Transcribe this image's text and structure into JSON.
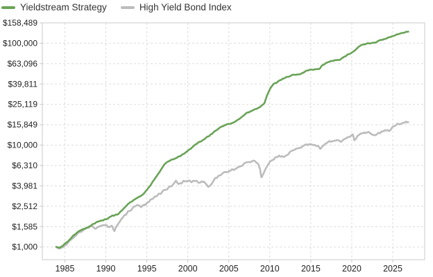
{
  "legend": {
    "items": [
      {
        "label": "Yieldstream Strategy",
        "color": "#69a356"
      },
      {
        "label": "High Yield Bond Index",
        "color": "#bcbcbc"
      }
    ]
  },
  "colors": {
    "grid": "#dcdcdc",
    "plot_border": "#c9c9c9",
    "tick_text": "#222222",
    "legend_text": "#333333",
    "background": "#ffffff"
  },
  "chart_data": {
    "type": "line",
    "title": "",
    "xlabel": "",
    "ylabel": "",
    "x_axis": {
      "min": 1982.3,
      "max": 2028.9,
      "tick_years": [
        1985,
        1990,
        1995,
        2000,
        2005,
        2010,
        2015,
        2020,
        2025
      ],
      "tick_labels": [
        "1985",
        "1990",
        "1995",
        "2000",
        "2005",
        "2010",
        "2015",
        "2020",
        "2025"
      ]
    },
    "y_axis": {
      "scale": "log",
      "min": 760,
      "max": 158489,
      "grid": "dashed",
      "tick_values": [
        158489,
        100000,
        63096,
        39811,
        25119,
        15849,
        10000,
        6310,
        3981,
        2512,
        1585,
        1000
      ],
      "tick_labels": [
        "$158,489",
        "$100,000",
        "$63,096",
        "$39,811",
        "$25,119",
        "$15,849",
        "$10,000",
        "$6,310",
        "$3,981",
        "$2,512",
        "$1,585",
        "$1,000"
      ]
    },
    "legend_position": "top-left",
    "series": [
      {
        "name": "Yieldstream Strategy",
        "color": "#69a356",
        "texture": 0.006,
        "points": [
          [
            1983.95,
            1005
          ],
          [
            1984.3,
            975
          ],
          [
            1984.7,
            1010
          ],
          [
            1985.0,
            1080
          ],
          [
            1985.5,
            1160
          ],
          [
            1986.0,
            1290
          ],
          [
            1986.6,
            1420
          ],
          [
            1987.2,
            1500
          ],
          [
            1987.7,
            1540
          ],
          [
            1988.3,
            1660
          ],
          [
            1989.0,
            1770
          ],
          [
            1989.6,
            1820
          ],
          [
            1990.2,
            1900
          ],
          [
            1990.8,
            2020
          ],
          [
            1991.5,
            2100
          ],
          [
            1992.0,
            2300
          ],
          [
            1992.7,
            2650
          ],
          [
            1993.4,
            2900
          ],
          [
            1994.0,
            3100
          ],
          [
            1994.6,
            3300
          ],
          [
            1995.2,
            3800
          ],
          [
            1995.9,
            4600
          ],
          [
            1996.5,
            5400
          ],
          [
            1997.2,
            6600
          ],
          [
            1997.8,
            7100
          ],
          [
            1998.4,
            7350
          ],
          [
            1999.0,
            7800
          ],
          [
            1999.6,
            8300
          ],
          [
            2000.2,
            9000
          ],
          [
            2000.9,
            10100
          ],
          [
            2001.5,
            10800
          ],
          [
            2002.1,
            11600
          ],
          [
            2002.8,
            12700
          ],
          [
            2003.4,
            13900
          ],
          [
            2004.0,
            15000
          ],
          [
            2004.7,
            15900
          ],
          [
            2005.3,
            16400
          ],
          [
            2005.9,
            17300
          ],
          [
            2006.6,
            18800
          ],
          [
            2007.2,
            20700
          ],
          [
            2007.9,
            21900
          ],
          [
            2008.5,
            23000
          ],
          [
            2009.0,
            24200
          ],
          [
            2009.35,
            26000
          ],
          [
            2009.7,
            31500
          ],
          [
            2010.1,
            36500
          ],
          [
            2010.5,
            39800
          ],
          [
            2011.0,
            42300
          ],
          [
            2011.8,
            45400
          ],
          [
            2012.6,
            48500
          ],
          [
            2013.1,
            49200
          ],
          [
            2013.7,
            49500
          ],
          [
            2014.5,
            53400
          ],
          [
            2015.2,
            55000
          ],
          [
            2015.7,
            55600
          ],
          [
            2016.1,
            56500
          ],
          [
            2016.35,
            60500
          ],
          [
            2016.8,
            63500
          ],
          [
            2017.4,
            66500
          ],
          [
            2018.0,
            68000
          ],
          [
            2018.6,
            69500
          ],
          [
            2019.2,
            74500
          ],
          [
            2019.8,
            79500
          ],
          [
            2020.2,
            82500
          ],
          [
            2020.5,
            86500
          ],
          [
            2020.9,
            93000
          ],
          [
            2021.3,
            97000
          ],
          [
            2021.8,
            99000
          ],
          [
            2022.3,
            100000
          ],
          [
            2022.8,
            101500
          ],
          [
            2023.3,
            105500
          ],
          [
            2023.9,
            109500
          ],
          [
            2024.5,
            113500
          ],
          [
            2025.0,
            117500
          ],
          [
            2025.6,
            122000
          ],
          [
            2026.1,
            126500
          ],
          [
            2026.6,
            129000
          ],
          [
            2026.9,
            130000
          ]
        ]
      },
      {
        "name": "High Yield Bond Index",
        "color": "#bcbcbc",
        "texture": 0.013,
        "points": [
          [
            1983.95,
            1000
          ],
          [
            1984.35,
            950
          ],
          [
            1984.8,
            1000
          ],
          [
            1985.3,
            1090
          ],
          [
            1986.0,
            1230
          ],
          [
            1986.7,
            1380
          ],
          [
            1987.3,
            1480
          ],
          [
            1987.8,
            1560
          ],
          [
            1988.2,
            1620
          ],
          [
            1988.7,
            1510
          ],
          [
            1989.2,
            1600
          ],
          [
            1989.7,
            1660
          ],
          [
            1990.1,
            1640
          ],
          [
            1990.5,
            1560
          ],
          [
            1990.75,
            1620
          ],
          [
            1991.05,
            1440
          ],
          [
            1991.5,
            1700
          ],
          [
            1992.0,
            1960
          ],
          [
            1992.6,
            2160
          ],
          [
            1993.2,
            2400
          ],
          [
            1993.8,
            2580
          ],
          [
            1994.3,
            2500
          ],
          [
            1994.9,
            2620
          ],
          [
            1995.5,
            2900
          ],
          [
            1996.1,
            3150
          ],
          [
            1996.8,
            3450
          ],
          [
            1997.5,
            3750
          ],
          [
            1998.1,
            4000
          ],
          [
            1998.55,
            4400
          ],
          [
            1998.9,
            4100
          ],
          [
            1999.4,
            4350
          ],
          [
            1999.9,
            4450
          ],
          [
            2000.4,
            4350
          ],
          [
            2000.9,
            4450
          ],
          [
            2001.3,
            4250
          ],
          [
            2001.7,
            4450
          ],
          [
            2002.1,
            4300
          ],
          [
            2002.45,
            3920
          ],
          [
            2002.9,
            4150
          ],
          [
            2003.4,
            4750
          ],
          [
            2004.0,
            5150
          ],
          [
            2004.6,
            5350
          ],
          [
            2005.1,
            5600
          ],
          [
            2005.8,
            5850
          ],
          [
            2006.5,
            6250
          ],
          [
            2007.2,
            6750
          ],
          [
            2007.8,
            6950
          ],
          [
            2008.2,
            7050
          ],
          [
            2008.55,
            6600
          ],
          [
            2008.8,
            5800
          ],
          [
            2008.98,
            4750
          ],
          [
            2009.2,
            5150
          ],
          [
            2009.6,
            6100
          ],
          [
            2010.0,
            6900
          ],
          [
            2010.5,
            7350
          ],
          [
            2011.1,
            7850
          ],
          [
            2011.65,
            7550
          ],
          [
            2012.1,
            8150
          ],
          [
            2012.8,
            8850
          ],
          [
            2013.5,
            9300
          ],
          [
            2014.2,
            9900
          ],
          [
            2014.9,
            10250
          ],
          [
            2015.4,
            10100
          ],
          [
            2015.9,
            9600
          ],
          [
            2016.15,
            9350
          ],
          [
            2016.7,
            10300
          ],
          [
            2017.3,
            10800
          ],
          [
            2018.0,
            11100
          ],
          [
            2018.7,
            10900
          ],
          [
            2019.3,
            11700
          ],
          [
            2019.9,
            12400
          ],
          [
            2020.15,
            12600
          ],
          [
            2020.3,
            11100
          ],
          [
            2020.7,
            12400
          ],
          [
            2021.2,
            13000
          ],
          [
            2021.8,
            13400
          ],
          [
            2022.1,
            13300
          ],
          [
            2022.5,
            12700
          ],
          [
            2022.8,
            12600
          ],
          [
            2023.3,
            13200
          ],
          [
            2023.9,
            13800
          ],
          [
            2024.3,
            14100
          ],
          [
            2024.55,
            13900
          ],
          [
            2025.0,
            15100
          ],
          [
            2025.5,
            16000
          ],
          [
            2026.0,
            16200
          ],
          [
            2026.5,
            16600
          ],
          [
            2026.9,
            16800
          ]
        ]
      }
    ]
  }
}
